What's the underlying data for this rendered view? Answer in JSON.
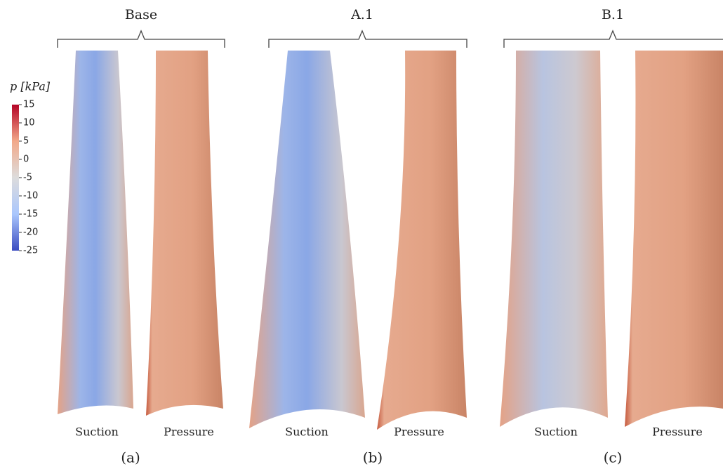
{
  "colorbar": {
    "label": "p [kPa]",
    "range": [
      -25,
      15
    ],
    "ticks": [
      15,
      10,
      5,
      0,
      -5,
      -10,
      -15,
      -20,
      -25
    ],
    "colors": [
      "#3b4cc0",
      "#aac7fd",
      "#dddcdc",
      "#f2a889",
      "#b40426"
    ]
  },
  "panels": [
    {
      "title": "Base",
      "views": [
        "Suction",
        "Pressure"
      ],
      "tag": "(a)"
    },
    {
      "title": "A.1",
      "views": [
        "Suction",
        "Pressure"
      ],
      "tag": "(b)"
    },
    {
      "title": "B.1",
      "views": [
        "Suction",
        "Pressure"
      ],
      "tag": "(c)"
    }
  ]
}
